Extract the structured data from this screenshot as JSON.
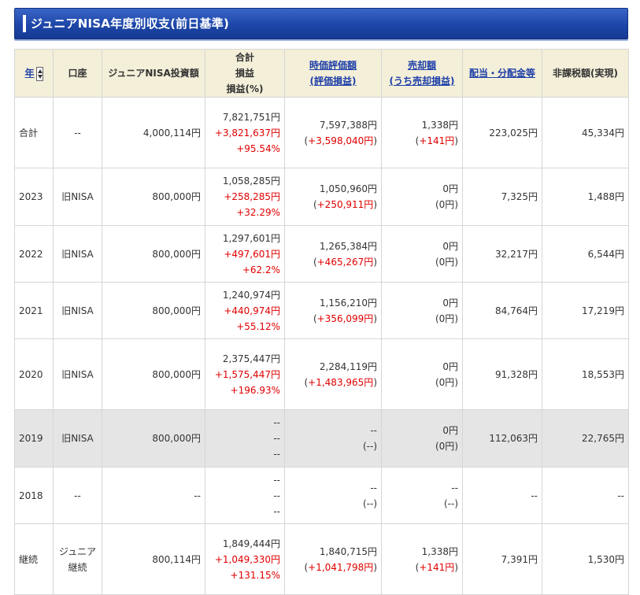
{
  "title": "ジュニアNISA年度別収支(前日基準)",
  "headers": {
    "year": "年",
    "account": "口座",
    "investment": "ジュニアNISA投資額",
    "total": "合計",
    "total_pl": "損益",
    "total_pct": "損益(%)",
    "market_value": "時価評価額",
    "market_value_pl": "(評価損益)",
    "sale_amount": "売却額",
    "sale_pl": "(うち売却損益)",
    "dividend": "配当・分配金等",
    "tax_exempt": "非課税額(実現)"
  },
  "icons": {
    "sort": "sort-updown-icon"
  },
  "colors": {
    "title_bg": "#1d46a8",
    "header_bg": "#f4efd9",
    "negative_red": "#e00000",
    "row_highlight": "#e5e5e5"
  },
  "rows": [
    {
      "year": "合計",
      "account": "--",
      "investment": "4,000,114円",
      "total": "7,821,751円",
      "total_pl": "+3,821,637円",
      "total_pct": "+95.54%",
      "market_value": "7,597,388円",
      "market_value_pl": "+3,598,040円",
      "sale_amount": "1,338円",
      "sale_pl": "+141円",
      "dividend": "223,025円",
      "tax_exempt": "45,334円",
      "gray": false
    },
    {
      "year": "2023",
      "account": "旧NISA",
      "investment": "800,000円",
      "total": "1,058,285円",
      "total_pl": "+258,285円",
      "total_pct": "+32.29%",
      "market_value": "1,050,960円",
      "market_value_pl": "+250,911円",
      "sale_amount": "0円",
      "sale_pl": "0円",
      "dividend": "7,325円",
      "tax_exempt": "1,488円",
      "gray": false
    },
    {
      "year": "2022",
      "account": "旧NISA",
      "investment": "800,000円",
      "total": "1,297,601円",
      "total_pl": "+497,601円",
      "total_pct": "+62.2%",
      "market_value": "1,265,384円",
      "market_value_pl": "+465,267円",
      "sale_amount": "0円",
      "sale_pl": "0円",
      "dividend": "32,217円",
      "tax_exempt": "6,544円",
      "gray": false
    },
    {
      "year": "2021",
      "account": "旧NISA",
      "investment": "800,000円",
      "total": "1,240,974円",
      "total_pl": "+440,974円",
      "total_pct": "+55.12%",
      "market_value": "1,156,210円",
      "market_value_pl": "+356,099円",
      "sale_amount": "0円",
      "sale_pl": "0円",
      "dividend": "84,764円",
      "tax_exempt": "17,219円",
      "gray": false
    },
    {
      "year": "2020",
      "account": "旧NISA",
      "investment": "800,000円",
      "total": "2,375,447円",
      "total_pl": "+1,575,447円",
      "total_pct": "+196.93%",
      "market_value": "2,284,119円",
      "market_value_pl": "+1,483,965円",
      "sale_amount": "0円",
      "sale_pl": "0円",
      "dividend": "91,328円",
      "tax_exempt": "18,553円",
      "gray": false
    },
    {
      "year": "2019",
      "account": "旧NISA",
      "investment": "800,000円",
      "total": "--",
      "total_pl": "--",
      "total_pct": "--",
      "market_value": "--",
      "market_value_pl": "--",
      "sale_amount": "0円",
      "sale_pl": "0円",
      "dividend": "112,063円",
      "tax_exempt": "22,765円",
      "gray": true
    },
    {
      "year": "2018",
      "account": "--",
      "investment": "--",
      "total": "--",
      "total_pl": "--",
      "total_pct": "--",
      "market_value": "--",
      "market_value_pl": "--",
      "sale_amount": "--",
      "sale_pl": "--",
      "dividend": "--",
      "tax_exempt": "--",
      "gray": false
    },
    {
      "year": "継続",
      "account": "ジュニア継続",
      "investment": "800,114円",
      "total": "1,849,444円",
      "total_pl": "+1,049,330円",
      "total_pct": "+131.15%",
      "market_value": "1,840,715円",
      "market_value_pl": "+1,041,798円",
      "sale_amount": "1,338円",
      "sale_pl": "+141円",
      "dividend": "7,391円",
      "tax_exempt": "1,530円",
      "gray": false
    }
  ]
}
